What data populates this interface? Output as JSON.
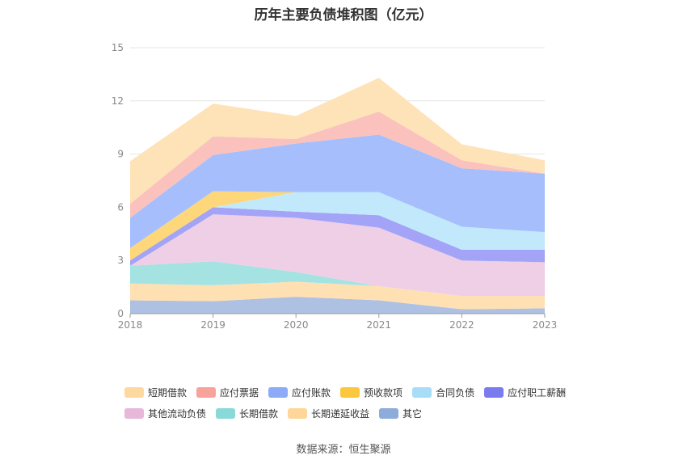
{
  "chart_data": {
    "type": "area",
    "title": "历年主要负债堆积图（亿元）",
    "x": [
      "2018",
      "2019",
      "2020",
      "2021",
      "2022",
      "2023"
    ],
    "ylim": [
      0,
      15
    ],
    "yticks": [
      "0",
      "3",
      "6",
      "9",
      "12",
      "15"
    ],
    "stacked": true,
    "grid": true,
    "legend_position": "bottom",
    "series": [
      {
        "name": "其它",
        "color": "#aec1e3",
        "legend_color": "#8eacd9",
        "values": [
          0.75,
          0.7,
          0.95,
          0.75,
          0.25,
          0.3
        ]
      },
      {
        "name": "长期递延收益",
        "color": "#ffe0b3",
        "legend_color": "#ffd699",
        "values": [
          0.95,
          0.9,
          0.85,
          0.8,
          0.75,
          0.7
        ]
      },
      {
        "name": "长期借款",
        "color": "#a5e3e3",
        "legend_color": "#8ad9d9",
        "values": [
          1.0,
          1.35,
          0.55,
          0.0,
          0.0,
          0.0
        ]
      },
      {
        "name": "其他流动负债",
        "color": "#efcfe5",
        "legend_color": "#e8b8da",
        "values": [
          0.0,
          2.65,
          3.05,
          3.3,
          2.0,
          1.9
        ]
      },
      {
        "name": "应付职工薪酬",
        "color": "#a3a3f7",
        "legend_color": "#7b7bf0",
        "values": [
          0.3,
          0.4,
          0.35,
          0.7,
          0.6,
          0.7
        ]
      },
      {
        "name": "合同负债",
        "color": "#c2e9fb",
        "legend_color": "#a8ddf7",
        "values": [
          0.0,
          0.0,
          1.1,
          1.3,
          1.3,
          1.0
        ]
      },
      {
        "name": "预收款项",
        "color": "#fdd77a",
        "legend_color": "#fbc73d",
        "values": [
          0.7,
          0.9,
          0.0,
          0.0,
          0.0,
          0.0
        ]
      },
      {
        "name": "应付账款",
        "color": "#a6bffc",
        "legend_color": "#8eabf8",
        "values": [
          1.7,
          2.05,
          2.75,
          3.25,
          3.3,
          3.3
        ]
      },
      {
        "name": "应付票据",
        "color": "#fbc2bd",
        "legend_color": "#f7a39c",
        "values": [
          0.8,
          1.05,
          0.25,
          1.3,
          0.45,
          0.0
        ]
      },
      {
        "name": "短期借款",
        "color": "#fee3b8",
        "legend_color": "#fdd9a0",
        "values": [
          2.4,
          1.85,
          1.3,
          1.9,
          0.9,
          0.75
        ]
      }
    ],
    "legend_order": [
      "短期借款",
      "应付票据",
      "应付账款",
      "预收款项",
      "合同负债",
      "应付职工薪酬",
      "其他流动负债",
      "长期借款",
      "长期递延收益",
      "其它"
    ]
  },
  "source_text": "数据来源：恒生聚源"
}
